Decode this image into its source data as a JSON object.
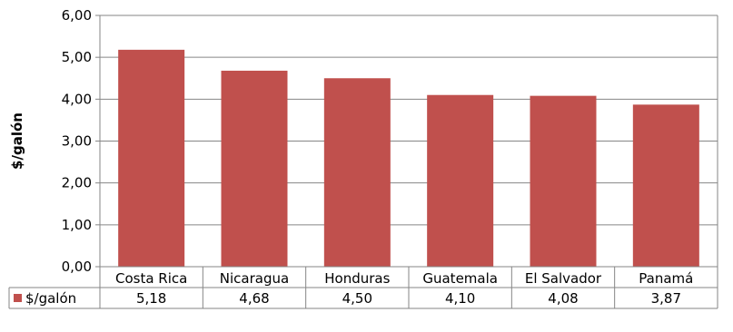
{
  "chart_data": {
    "type": "bar",
    "title": "",
    "ylabel": "$/galón",
    "xlabel": "",
    "ylim": [
      0,
      6
    ],
    "y_ticks": [
      "0,00",
      "1,00",
      "2,00",
      "3,00",
      "4,00",
      "5,00",
      "6,00"
    ],
    "grid": true,
    "categories": [
      "Costa Rica",
      "Nicaragua",
      "Honduras",
      "Guatemala",
      "El Salvador",
      "Panamá"
    ],
    "series": [
      {
        "name": "$/galón",
        "values": [
          5.18,
          4.68,
          4.5,
          4.1,
          4.08,
          3.87
        ],
        "value_labels": [
          "5,18",
          "4,68",
          "4,50",
          "4,10",
          "4,08",
          "3,87"
        ],
        "color": "#C0504D"
      }
    ],
    "data_table": true
  }
}
